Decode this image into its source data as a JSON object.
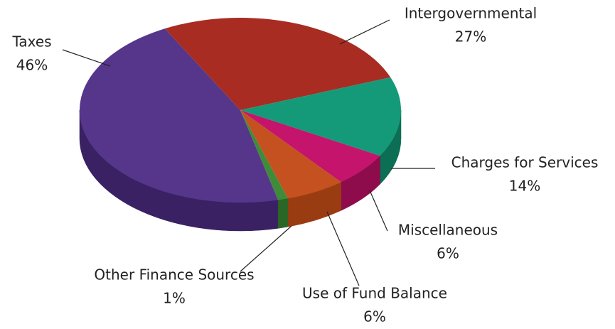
{
  "chart_data": {
    "type": "pie3d",
    "categories": [
      "Taxes",
      "Intergovernmental",
      "Charges for Services",
      "Miscellaneous",
      "Use of Fund Balance",
      "Other Finance Sources"
    ],
    "values": [
      46,
      27,
      14,
      6,
      6,
      1
    ],
    "value_labels": [
      "46%",
      "27%",
      "14%",
      "6%",
      "6%",
      "1%"
    ],
    "colors": [
      "#56368a",
      "#a82c22",
      "#149a78",
      "#c4146c",
      "#c4511f",
      "#3e8b3a"
    ],
    "side_colors": [
      "#3a2163",
      "#7d1c15",
      "#0b6e55",
      "#8e0b4c",
      "#9a3c12",
      "#2a6626"
    ]
  }
}
